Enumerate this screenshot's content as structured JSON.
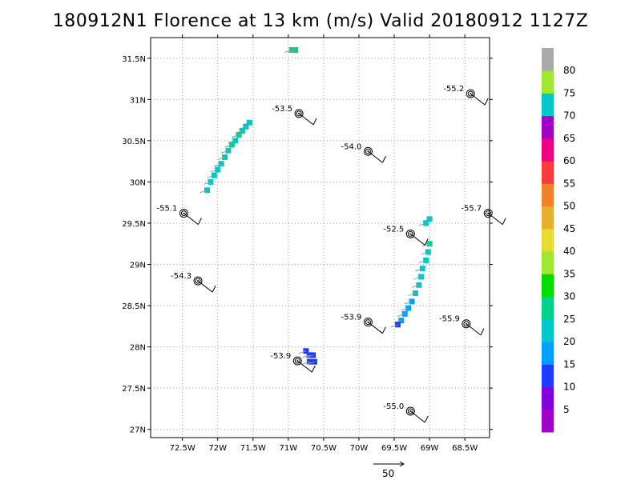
{
  "title": "180912N1 Florence at 13 km (m/s) Valid 20180912 1127Z",
  "map": {
    "lon_range": [
      -72.95,
      -68.15
    ],
    "lat_range": [
      26.9,
      31.75
    ],
    "x_ticks": [
      {
        "lon": -72.5,
        "label": "72.5W"
      },
      {
        "lon": -72.0,
        "label": "72W"
      },
      {
        "lon": -71.5,
        "label": "71.5W"
      },
      {
        "lon": -71.0,
        "label": "71W"
      },
      {
        "lon": -70.5,
        "label": "70.5W"
      },
      {
        "lon": -70.0,
        "label": "70W"
      },
      {
        "lon": -69.5,
        "label": "69.5W"
      },
      {
        "lon": -69.0,
        "label": "69W"
      },
      {
        "lon": -68.5,
        "label": "68.5W"
      }
    ],
    "y_ticks": [
      {
        "lat": 27.0,
        "label": "27N"
      },
      {
        "lat": 27.5,
        "label": "27.5N"
      },
      {
        "lat": 28.0,
        "label": "28N"
      },
      {
        "lat": 28.5,
        "label": "28.5N"
      },
      {
        "lat": 29.0,
        "label": "29N"
      },
      {
        "lat": 29.5,
        "label": "29.5N"
      },
      {
        "lat": 30.0,
        "label": "30N"
      },
      {
        "lat": 30.5,
        "label": "30.5N"
      },
      {
        "lat": 31.0,
        "label": "31N"
      },
      {
        "lat": 31.5,
        "label": "31.5N"
      }
    ],
    "grid": "dotted"
  },
  "stations": [
    {
      "label": "-53.5",
      "lon": -70.85,
      "lat": 30.83
    },
    {
      "label": "-55.2",
      "lon": -68.42,
      "lat": 31.07
    },
    {
      "label": "-54.0",
      "lon": -69.87,
      "lat": 30.37
    },
    {
      "label": "-55.1",
      "lon": -72.48,
      "lat": 29.62
    },
    {
      "label": "-55.7",
      "lon": -68.17,
      "lat": 29.62
    },
    {
      "label": "-52.5",
      "lon": -69.27,
      "lat": 29.37
    },
    {
      "label": "-54.3",
      "lon": -72.28,
      "lat": 28.8
    },
    {
      "label": "-53.9",
      "lon": -69.87,
      "lat": 28.3
    },
    {
      "label": "-55.9",
      "lon": -68.48,
      "lat": 28.28
    },
    {
      "label": "-53.9",
      "lon": -70.87,
      "lat": 27.83
    },
    {
      "label": "-55.0",
      "lon": -69.27,
      "lat": 27.22
    }
  ],
  "wind_cells": {
    "band_north": [
      {
        "lon": -71.55,
        "lat": 30.72,
        "v": 20
      },
      {
        "lon": -71.6,
        "lat": 30.67,
        "v": 20
      },
      {
        "lon": -71.65,
        "lat": 30.62,
        "v": 20
      },
      {
        "lon": -71.7,
        "lat": 30.57,
        "v": 25
      },
      {
        "lon": -71.75,
        "lat": 30.5,
        "v": 20
      },
      {
        "lon": -71.8,
        "lat": 30.45,
        "v": 25
      },
      {
        "lon": -71.85,
        "lat": 30.38,
        "v": 20
      },
      {
        "lon": -71.9,
        "lat": 30.3,
        "v": 20
      },
      {
        "lon": -71.95,
        "lat": 30.22,
        "v": 20
      },
      {
        "lon": -72.0,
        "lat": 30.15,
        "v": 20
      },
      {
        "lon": -72.05,
        "lat": 30.08,
        "v": 20
      },
      {
        "lon": -72.1,
        "lat": 30.0,
        "v": 20
      },
      {
        "lon": -72.15,
        "lat": 29.9,
        "v": 20
      }
    ],
    "band_east": [
      {
        "lon": -69.0,
        "lat": 29.55,
        "v": 20
      },
      {
        "lon": -69.05,
        "lat": 29.5,
        "v": 20
      },
      {
        "lon": -69.0,
        "lat": 29.25,
        "v": 25
      },
      {
        "lon": -69.02,
        "lat": 29.15,
        "v": 20
      },
      {
        "lon": -69.05,
        "lat": 29.05,
        "v": 20
      },
      {
        "lon": -69.1,
        "lat": 28.95,
        "v": 20
      },
      {
        "lon": -69.12,
        "lat": 28.85,
        "v": 20
      },
      {
        "lon": -69.15,
        "lat": 28.75,
        "v": 20
      },
      {
        "lon": -69.2,
        "lat": 28.65,
        "v": 20
      },
      {
        "lon": -69.25,
        "lat": 28.55,
        "v": 15
      },
      {
        "lon": -69.3,
        "lat": 28.47,
        "v": 15
      },
      {
        "lon": -69.35,
        "lat": 28.4,
        "v": 15
      },
      {
        "lon": -69.4,
        "lat": 28.32,
        "v": 15
      },
      {
        "lon": -69.45,
        "lat": 28.27,
        "v": 10
      }
    ],
    "south_patch": [
      {
        "lon": -70.75,
        "lat": 27.95,
        "v": 10
      },
      {
        "lon": -70.7,
        "lat": 27.9,
        "v": 10
      },
      {
        "lon": -70.65,
        "lat": 27.9,
        "v": 10
      },
      {
        "lon": -70.7,
        "lat": 27.82,
        "v": 10
      },
      {
        "lon": -70.63,
        "lat": 27.82,
        "v": 10
      }
    ],
    "top_edge": [
      {
        "lon": -70.95,
        "lat": 31.6,
        "v": 25
      },
      {
        "lon": -70.9,
        "lat": 31.6,
        "v": 25
      }
    ]
  },
  "colorbar": {
    "levels": [
      0,
      5,
      10,
      15,
      20,
      25,
      30,
      35,
      40,
      45,
      50,
      55,
      60,
      65,
      70,
      75,
      80,
      85
    ],
    "labels": [
      "5",
      "10",
      "15",
      "20",
      "25",
      "30",
      "35",
      "40",
      "45",
      "50",
      "55",
      "60",
      "65",
      "70",
      "75",
      "80"
    ],
    "colors": [
      "#a000c8",
      "#8200dc",
      "#1e3cff",
      "#00a0ff",
      "#00c8c8",
      "#00d28c",
      "#00dc00",
      "#a0e632",
      "#e6dc32",
      "#e6af2d",
      "#f08228",
      "#fa3c3c",
      "#f00082",
      "#a000c8",
      "#00c8c8",
      "#a0e632",
      "#aaaaaa"
    ]
  },
  "reference_vector": {
    "label": "50"
  }
}
